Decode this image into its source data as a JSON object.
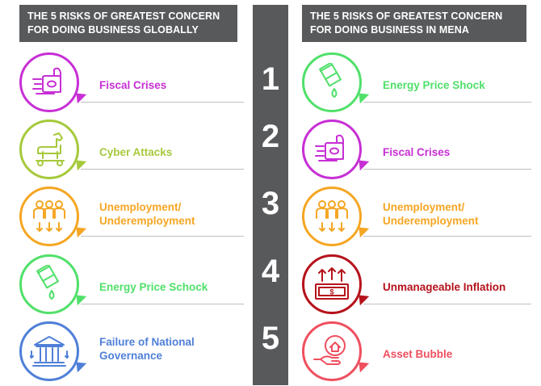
{
  "headers": {
    "left": [
      "THE 5 RISKS OF GREATEST CONCERN",
      "FOR DOING BUSINESS GLOBALLY"
    ],
    "right": [
      "THE 5 RISKS OF GREATEST CONCERN",
      "FOR DOING BUSINESS IN MENA"
    ]
  },
  "ranks": [
    "1",
    "2",
    "3",
    "4",
    "5"
  ],
  "global": [
    {
      "lines": [
        "Fiscal Crises"
      ],
      "color": "#c72fd5",
      "icon": "money-printer-icon"
    },
    {
      "lines": [
        "Cyber Attacks"
      ],
      "color": "#a6c93b",
      "icon": "trojan-horse-icon"
    },
    {
      "lines": [
        "Unemployment/",
        "Underemployment"
      ],
      "color": "#f5a623",
      "icon": "people-down-icon"
    },
    {
      "lines": [
        "Energy Price Schock"
      ],
      "color": "#50e06a",
      "icon": "oil-barrel-drop-icon"
    },
    {
      "lines": [
        "Failure of National",
        "Governance"
      ],
      "color": "#4f7fd8",
      "icon": "government-building-icon"
    }
  ],
  "mena": [
    {
      "lines": [
        "Energy Price Shock"
      ],
      "color": "#50e06a",
      "icon": "oil-barrel-drop-icon"
    },
    {
      "lines": [
        "Fiscal Crises"
      ],
      "color": "#c72fd5",
      "icon": "money-printer-icon"
    },
    {
      "lines": [
        "Unemployment/",
        "Underemployment"
      ],
      "color": "#f5a623",
      "icon": "people-down-icon"
    },
    {
      "lines": [
        "Unmanageable Inflation"
      ],
      "color": "#b5121b",
      "icon": "inflation-cash-icon"
    },
    {
      "lines": [
        "Asset Bubble"
      ],
      "color": "#ef4f5f",
      "icon": "hand-house-icon"
    }
  ]
}
